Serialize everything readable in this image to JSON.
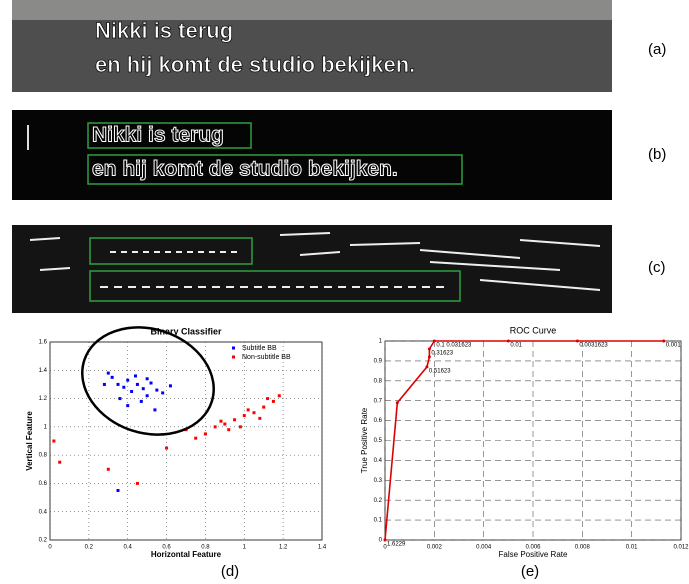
{
  "images": [
    {
      "label": "(a)",
      "lines": [
        "Nikki is terug",
        "en hij komt de studio bekijken."
      ]
    },
    {
      "label": "(b)",
      "lines": [
        "Nikki is terug",
        "en hij komt de studio bekijken."
      ]
    },
    {
      "label": "(c)"
    }
  ],
  "chart_data": [
    {
      "type": "scatter",
      "title": "Binary Classifier",
      "x_label": "Horizontal Feature",
      "y_label": "Vertical Feature",
      "panel_label": "(d)",
      "xlim": [
        0,
        1.4
      ],
      "xticks": [
        0,
        0.2,
        0.4,
        0.6,
        0.8,
        1,
        1.2,
        1.4
      ],
      "ylim": [
        0.2,
        1.6
      ],
      "yticks": [
        0.2,
        0.4,
        0.6,
        0.8,
        1,
        1.2,
        1.4,
        1.6
      ],
      "grid": true,
      "legend": "top-right",
      "series": [
        {
          "name": "Subtitle BB",
          "color": "#0000ff",
          "x": [
            0.32,
            0.35,
            0.38,
            0.4,
            0.42,
            0.45,
            0.48,
            0.5,
            0.52,
            0.55,
            0.3,
            0.36,
            0.44,
            0.47,
            0.58,
            0.62,
            0.4,
            0.5,
            0.28,
            0.54,
            0.35
          ],
          "values": [
            1.35,
            1.3,
            1.28,
            1.33,
            1.25,
            1.3,
            1.27,
            1.22,
            1.31,
            1.26,
            1.38,
            1.2,
            1.36,
            1.18,
            1.24,
            1.29,
            1.15,
            1.34,
            1.3,
            1.12,
            0.55
          ]
        },
        {
          "name": "Non-subtitle BB",
          "color": "#ff0000",
          "x": [
            0.8,
            0.85,
            0.9,
            0.95,
            1.0,
            1.05,
            1.1,
            1.15,
            1.12,
            0.98,
            0.92,
            1.02,
            1.08,
            0.88,
            0.75,
            0.6,
            0.3,
            0.02,
            0.05,
            0.45,
            1.18,
            0.7
          ],
          "values": [
            0.95,
            1.0,
            1.02,
            1.05,
            1.08,
            1.1,
            1.14,
            1.18,
            1.2,
            1.0,
            0.98,
            1.12,
            1.06,
            1.04,
            0.92,
            0.85,
            0.7,
            0.9,
            0.75,
            0.6,
            1.22,
            0.98
          ]
        }
      ]
    },
    {
      "type": "line",
      "title": "ROC Curve",
      "x_label": "False Positive Rate",
      "y_label": "True Positive Rate",
      "panel_label": "(e)",
      "xlim": [
        0,
        0.012
      ],
      "xticks": [
        0,
        0.002,
        0.004,
        0.006,
        0.008,
        0.01,
        0.012
      ],
      "ylim": [
        0,
        1
      ],
      "yticks": [
        0,
        0.1,
        0.2,
        0.3,
        0.4,
        0.5,
        0.6,
        0.7,
        0.8,
        0.9,
        1
      ],
      "grid": true,
      "series": [
        {
          "color": "#dd0000",
          "x": [
            0,
            0.0005,
            0.0017,
            0.0018,
            0.0018,
            0.002,
            0.005,
            0.0078,
            0.0113
          ],
          "values": [
            0,
            0.69,
            0.87,
            0.92,
            0.96,
            1,
            1,
            1,
            1
          ],
          "point_labels": [
            "1.6229",
            null,
            "0.51623",
            null,
            "0.31623",
            "0.1 0.031623",
            "0.01",
            "0.0031623",
            "0.001"
          ]
        }
      ]
    }
  ]
}
